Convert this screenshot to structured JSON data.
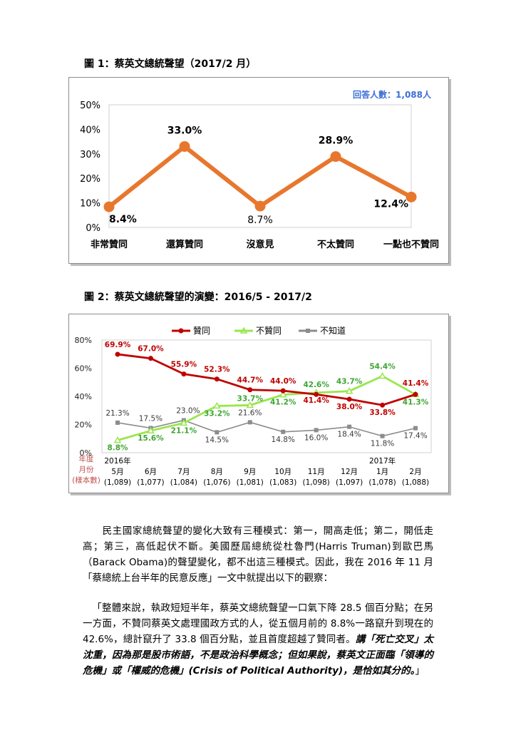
{
  "figure1": {
    "title": "圖 1：蔡英文總統聲望（2017/2 月）",
    "respondents": "回答人數：1,088人"
  },
  "figure2": {
    "title": "圖 2：蔡英文總統聲望的演變：2016/5 - 2017/2",
    "row_labels": [
      "年度",
      "月份",
      "(樣本數)"
    ],
    "years": [
      [
        "2016年",
        0
      ],
      [
        "2017年",
        8
      ]
    ]
  },
  "chart_data": [
    {
      "type": "line",
      "categories": [
        "非常贊同",
        "還算贊同",
        "沒意見",
        "不太贊同",
        "一點也不贊同"
      ],
      "series": [
        {
          "values": [
            8.4,
            33.0,
            8.7,
            28.9,
            12.4
          ],
          "labels": [
            "8.4%",
            "33.0%",
            "8.7%",
            "28.9%",
            "12.4%"
          ]
        }
      ],
      "ylim": [
        0,
        50
      ],
      "yticks": [
        "0%",
        "10%",
        "20%",
        "30%",
        "40%",
        "50%"
      ],
      "colors": {
        "line": "#e8772e"
      }
    },
    {
      "type": "line",
      "categories": [
        "5月",
        "6月",
        "7月",
        "8月",
        "9月",
        "10月",
        "11月",
        "12月",
        "1月",
        "2月"
      ],
      "samples": [
        "(1,089)",
        "(1,077)",
        "(1,084)",
        "(1,076)",
        "(1,081)",
        "(1,083)",
        "(1,098)",
        "(1,097)",
        "(1,078)",
        "(1,088)"
      ],
      "series": [
        {
          "name": "贊同",
          "color": "#c00000",
          "values": [
            69.9,
            67.0,
            55.9,
            52.3,
            44.7,
            44.0,
            41.4,
            38.0,
            33.8,
            41.4
          ],
          "labels": [
            "69.9%",
            "67.0%",
            "55.9%",
            "52.3%",
            "44.7%",
            "44.0%",
            "41.4%",
            "38.0%",
            "33.8%",
            "41.4%"
          ]
        },
        {
          "name": "不贊同",
          "color": "#99e64d",
          "values": [
            8.8,
            15.6,
            21.1,
            33.2,
            33.7,
            41.2,
            42.6,
            43.7,
            54.4,
            41.3
          ],
          "labels": [
            "8.8%",
            "15.6%",
            "21.1%",
            "33.2%",
            "33.7%",
            "41.2%",
            "42.6%",
            "43.7%",
            "54.4%",
            "41.3%"
          ]
        },
        {
          "name": "不知道",
          "color": "#8c8c8c",
          "values": [
            21.3,
            17.5,
            23.0,
            14.5,
            21.6,
            14.8,
            16.0,
            18.4,
            11.8,
            17.4
          ],
          "labels": [
            "21.3%",
            "17.5%",
            "23.0%",
            "14.5%",
            "21.6%",
            "14.8%",
            "16.0%",
            "18.4%",
            "11.8%",
            "17.4%"
          ]
        }
      ],
      "ylim": [
        0,
        80
      ],
      "yticks": [
        "0%",
        "20%",
        "40%",
        "60%",
        "80%"
      ],
      "label_colors": {
        "贊同": "#c00000",
        "不贊同": "#3fa535",
        "不知道": "#3a3a3a"
      }
    }
  ],
  "body": {
    "para1": "民主國家總統聲望的變化大致有三種模式：第一，開高走低；第二，開低走高；第三，高低起伏不斷。美國歷屆總統從杜魯門(Harris Truman)到歐巴馬（Barack Obama)的聲望變化，都不出這三種模式。因此，我在 2016 年 11 月「蔡總統上台半年的民意反應」一文中就提出以下的觀察：",
    "quote_plain": "「整體來說，執政短短半年，蔡英文總統聲望一口氣下降 28.5 個百分點；在另一方面，不贊同蔡英文處理國政方式的人，從五個月前的 8.8%一路竄升到現在的 42.6%，總計竄升了 33.8 個百分點，並且首度超越了贊同者。",
    "quote_emphasis": "講「死亡交叉」太沈重，因為那是股市術語，不是政治科學概念；但如果說，蔡英文正面臨「領導的危機」或「權威的危機」(Crisis of Political Authority)，是恰如其分的。",
    "quote_end": "」"
  }
}
